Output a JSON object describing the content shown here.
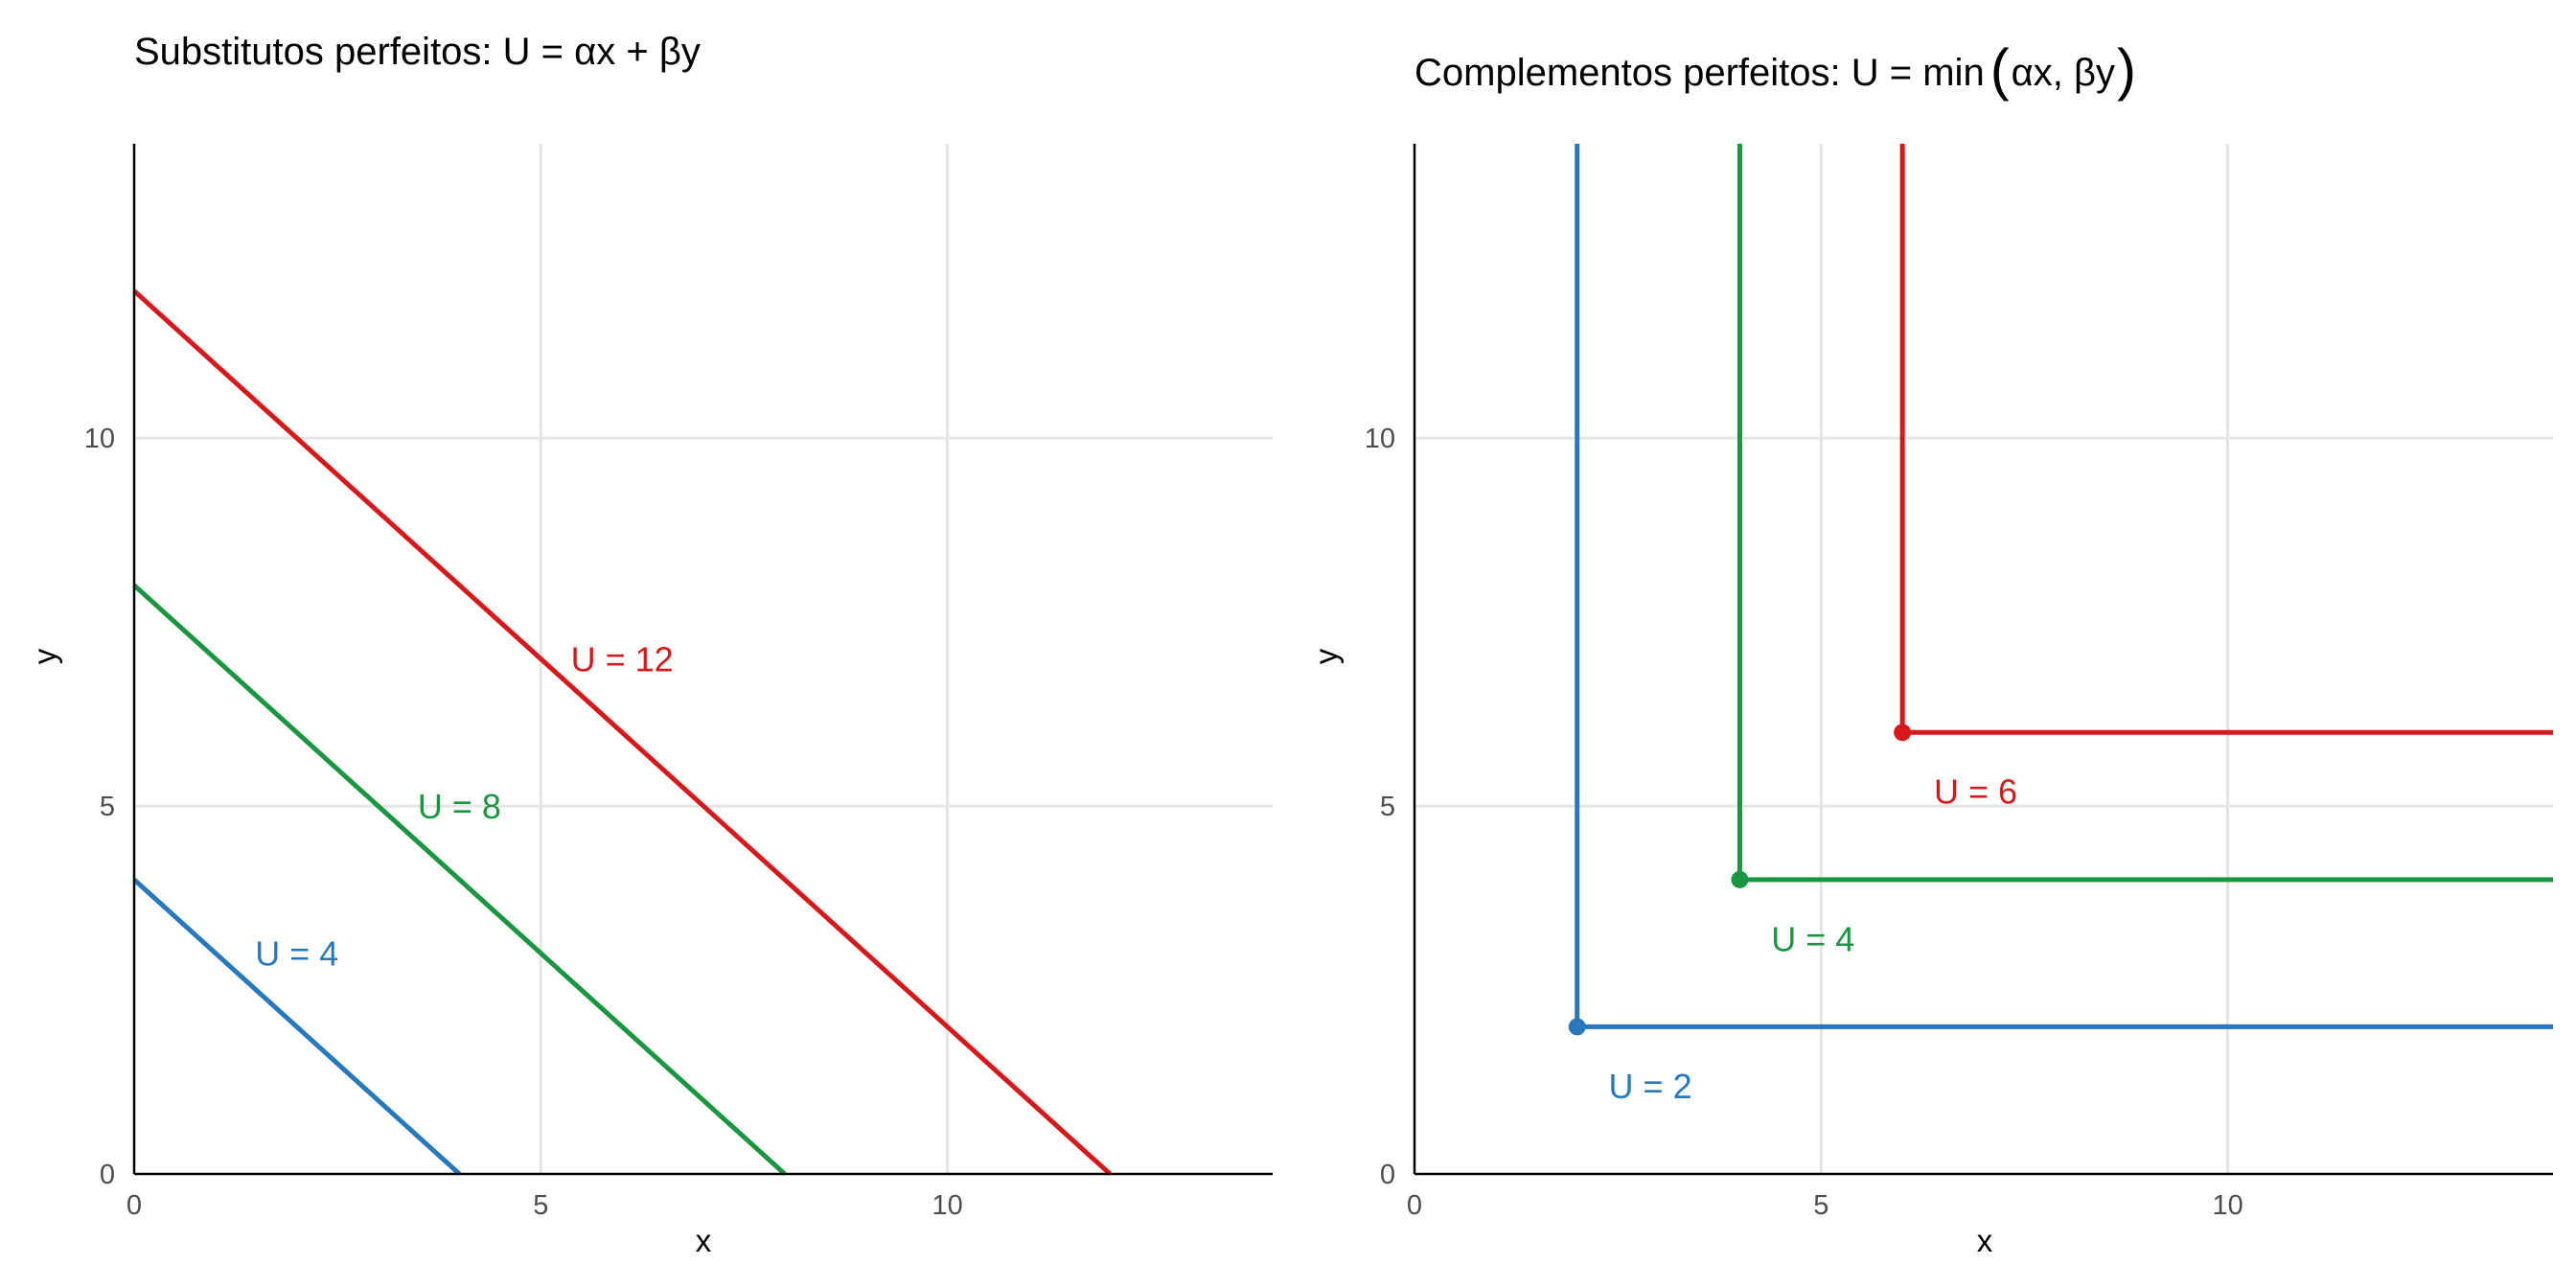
{
  "colors": {
    "blue": "#2878bd",
    "green": "#1a9641",
    "red": "#d7191c"
  },
  "chart_data": [
    {
      "type": "line",
      "title": "Substitutos perfeitos: U = αx + βy",
      "xlabel": "x",
      "ylabel": "y",
      "xlim": [
        0,
        14
      ],
      "ylim": [
        0,
        14
      ],
      "xticks": [
        "0",
        "5",
        "10"
      ],
      "yticks": [
        "0",
        "5",
        "10"
      ],
      "grid": true,
      "series": [
        {
          "name": "U = 4",
          "color": "#2878bd",
          "points": [
            [
              0,
              4
            ],
            [
              4,
              0
            ]
          ],
          "label_at": [
            2,
            3
          ]
        },
        {
          "name": "U = 8",
          "color": "#1a9641",
          "points": [
            [
              0,
              8
            ],
            [
              8,
              0
            ]
          ],
          "label_at": [
            4,
            5
          ]
        },
        {
          "name": "U = 12",
          "color": "#d7191c",
          "points": [
            [
              0,
              12
            ],
            [
              12,
              0
            ]
          ],
          "label_at": [
            6,
            7
          ]
        }
      ]
    },
    {
      "type": "line",
      "title": "Complementos perfeitos: U = min(αx, βy)",
      "title_parts": [
        "Complementos perfeitos: U = min",
        "αx, βy"
      ],
      "xlabel": "x",
      "ylabel": "y",
      "xlim": [
        0,
        14
      ],
      "ylim": [
        0,
        14
      ],
      "xticks": [
        "0",
        "5",
        "10"
      ],
      "yticks": [
        "0",
        "5",
        "10"
      ],
      "grid": true,
      "series": [
        {
          "name": "U = 2",
          "color": "#2878bd",
          "points": [
            [
              2,
              14
            ],
            [
              2,
              2
            ],
            [
              14,
              2
            ]
          ],
          "corner": [
            2,
            2
          ],
          "label_at": [
            2.9,
            1.2
          ]
        },
        {
          "name": "U = 4",
          "color": "#1a9641",
          "points": [
            [
              4,
              14
            ],
            [
              4,
              4
            ],
            [
              14,
              4
            ]
          ],
          "corner": [
            4,
            4
          ],
          "label_at": [
            4.9,
            3.2
          ]
        },
        {
          "name": "U = 6",
          "color": "#d7191c",
          "points": [
            [
              6,
              14
            ],
            [
              6,
              6
            ],
            [
              14,
              6
            ]
          ],
          "corner": [
            6,
            6
          ],
          "label_at": [
            6.9,
            5.2
          ]
        }
      ]
    }
  ]
}
